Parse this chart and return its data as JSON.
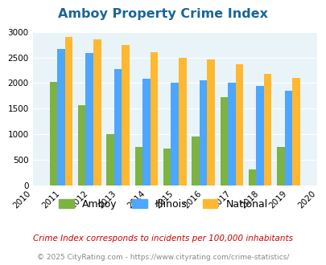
{
  "title": "Amboy Property Crime Index",
  "years": [
    2011,
    2012,
    2013,
    2014,
    2015,
    2016,
    2017,
    2018,
    2019
  ],
  "amboy": [
    2025,
    1575,
    1010,
    760,
    720,
    950,
    1730,
    310,
    750
  ],
  "illinois": [
    2670,
    2580,
    2270,
    2085,
    2000,
    2050,
    2010,
    1950,
    1850
  ],
  "national": [
    2900,
    2850,
    2740,
    2600,
    2500,
    2460,
    2360,
    2185,
    2100
  ],
  "color_amboy": "#7cb342",
  "color_illinois": "#4da6ff",
  "color_national": "#ffb830",
  "bg_color": "#e8f4f8",
  "ylim": [
    0,
    3000
  ],
  "yticks": [
    0,
    500,
    1000,
    1500,
    2000,
    2500,
    3000
  ],
  "xlim": [
    2010,
    2020
  ],
  "xticks": [
    2010,
    2011,
    2012,
    2013,
    2014,
    2015,
    2016,
    2017,
    2018,
    2019,
    2020
  ],
  "footnote1": "Crime Index corresponds to incidents per 100,000 inhabitants",
  "footnote2": "© 2025 CityRating.com - https://www.cityrating.com/crime-statistics/",
  "title_color": "#1a6699",
  "footnote1_color": "#cc0000",
  "footnote2_color": "#888888"
}
